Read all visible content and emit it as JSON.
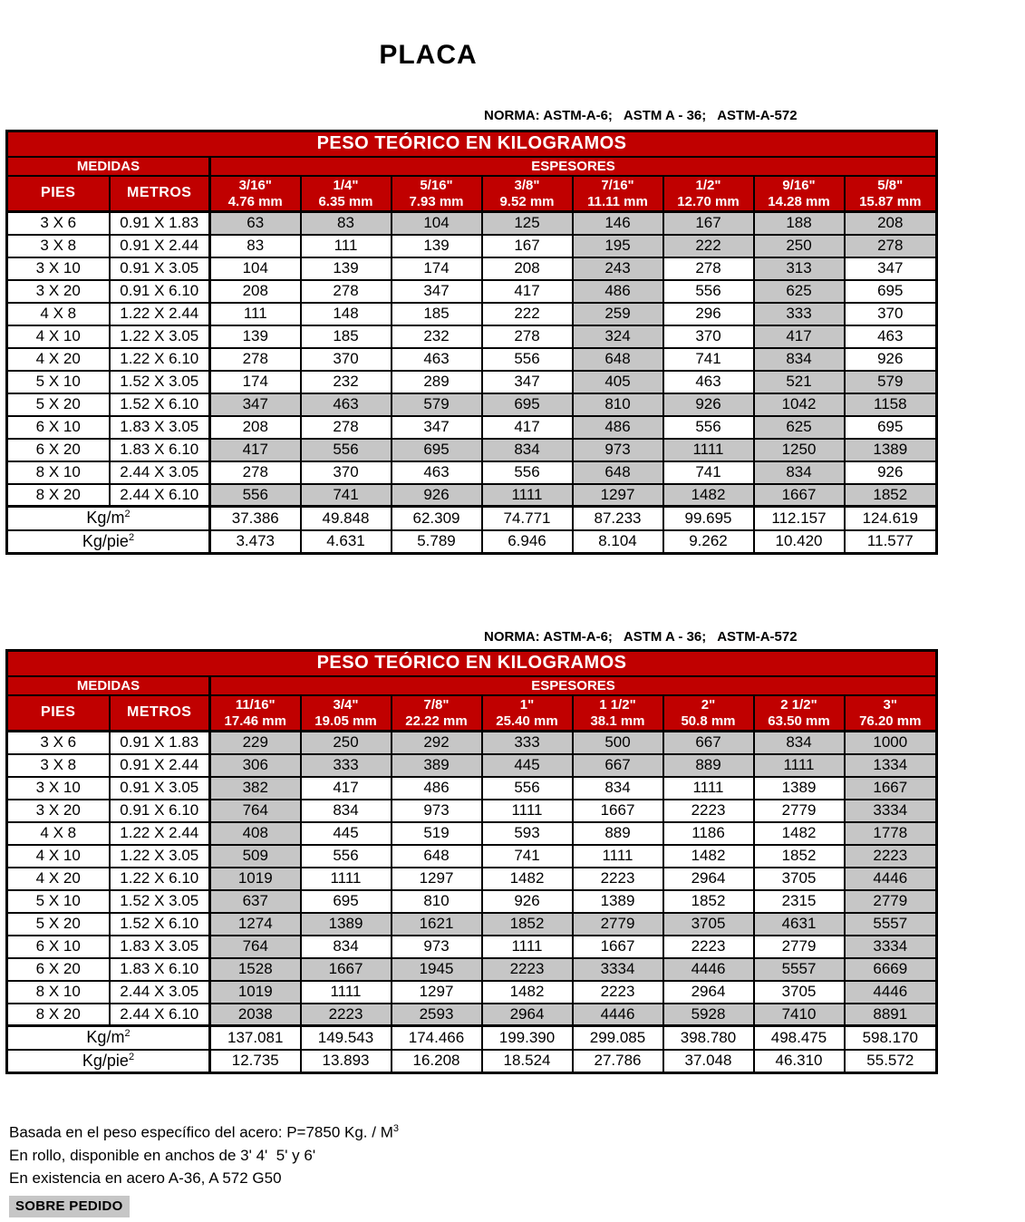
{
  "page": {
    "title": "PLACA",
    "norma": "NORMA: ASTM-A-6;   ASTM A - 36;   ASTM-A-572"
  },
  "colors": {
    "header_red": "#C00000",
    "shaded_gray": "#C6C6C6",
    "border_black": "#000000"
  },
  "table1": {
    "title": "PESO TEÓRICO EN KILOGRAMOS",
    "medidas_label": "MEDIDAS",
    "espesores_label": "ESPESORES",
    "pies_label": "PIES",
    "metros_label": "METROS",
    "columns": [
      {
        "inch": "3/16\"",
        "mm": "4.76 mm"
      },
      {
        "inch": "1/4\"",
        "mm": "6.35 mm"
      },
      {
        "inch": "5/16\"",
        "mm": "7.93 mm"
      },
      {
        "inch": "3/8\"",
        "mm": "9.52 mm"
      },
      {
        "inch": "7/16\"",
        "mm": "11.11 mm"
      },
      {
        "inch": "1/2\"",
        "mm": "12.70 mm"
      },
      {
        "inch": "9/16\"",
        "mm": "14.28 mm"
      },
      {
        "inch": "5/8\"",
        "mm": "15.87 mm"
      }
    ],
    "rows": [
      {
        "pies": "3 X 6",
        "metros": "0.91 X 1.83",
        "values": [
          63,
          83,
          104,
          125,
          146,
          167,
          188,
          208
        ],
        "gray": [
          1,
          1,
          1,
          1,
          1,
          1,
          1,
          1
        ],
        "group_start": true
      },
      {
        "pies": "3 X 8",
        "metros": "0.91 X 2.44",
        "values": [
          83,
          111,
          139,
          167,
          195,
          222,
          250,
          278
        ],
        "gray": [
          0,
          0,
          0,
          0,
          1,
          1,
          1,
          1
        ],
        "group_start": false
      },
      {
        "pies": "3 X 10",
        "metros": "0.91 X 3.05",
        "values": [
          104,
          139,
          174,
          208,
          243,
          278,
          313,
          347
        ],
        "gray": [
          0,
          0,
          0,
          0,
          1,
          0,
          1,
          0
        ],
        "group_start": false
      },
      {
        "pies": "3 X 20",
        "metros": "0.91 X 6.10",
        "values": [
          208,
          278,
          347,
          417,
          486,
          556,
          625,
          695
        ],
        "gray": [
          0,
          0,
          0,
          0,
          1,
          0,
          1,
          0
        ],
        "group_start": false
      },
      {
        "pies": "4 X 8",
        "metros": "1.22 X 2.44",
        "values": [
          111,
          148,
          185,
          222,
          259,
          296,
          333,
          370
        ],
        "gray": [
          0,
          0,
          0,
          0,
          1,
          0,
          1,
          0
        ],
        "group_start": true
      },
      {
        "pies": "4 X 10",
        "metros": "1.22 X 3.05",
        "values": [
          139,
          185,
          232,
          278,
          324,
          370,
          417,
          463
        ],
        "gray": [
          0,
          0,
          0,
          0,
          1,
          0,
          1,
          0
        ],
        "group_start": false
      },
      {
        "pies": "4 X 20",
        "metros": "1.22 X 6.10",
        "values": [
          278,
          370,
          463,
          556,
          648,
          741,
          834,
          926
        ],
        "gray": [
          0,
          0,
          0,
          0,
          1,
          0,
          1,
          0
        ],
        "group_start": false
      },
      {
        "pies": "5 X 10",
        "metros": "1.52 X 3.05",
        "values": [
          174,
          232,
          289,
          347,
          405,
          463,
          521,
          579
        ],
        "gray": [
          0,
          0,
          0,
          0,
          1,
          0,
          1,
          1
        ],
        "group_start": true
      },
      {
        "pies": "5 X 20",
        "metros": "1.52 X 6.10",
        "values": [
          347,
          463,
          579,
          695,
          810,
          926,
          1042,
          1158
        ],
        "gray": [
          1,
          1,
          1,
          1,
          1,
          1,
          1,
          1
        ],
        "group_start": false
      },
      {
        "pies": "6 X 10",
        "metros": "1.83 X 3.05",
        "values": [
          208,
          278,
          347,
          417,
          486,
          556,
          625,
          695
        ],
        "gray": [
          0,
          0,
          0,
          0,
          1,
          0,
          1,
          0
        ],
        "group_start": true
      },
      {
        "pies": "6 X 20",
        "metros": "1.83 X 6.10",
        "values": [
          417,
          556,
          695,
          834,
          973,
          1111,
          1250,
          1389
        ],
        "gray": [
          1,
          1,
          1,
          1,
          1,
          1,
          1,
          1
        ],
        "group_start": false
      },
      {
        "pies": "8 X 10",
        "metros": "2.44 X 3.05",
        "values": [
          278,
          370,
          463,
          556,
          648,
          741,
          834,
          926
        ],
        "gray": [
          0,
          0,
          0,
          0,
          1,
          0,
          1,
          0
        ],
        "group_start": true
      },
      {
        "pies": "8 X 20",
        "metros": "2.44 X 6.10",
        "values": [
          556,
          741,
          926,
          1111,
          1297,
          1482,
          1667,
          1852
        ],
        "gray": [
          1,
          1,
          1,
          1,
          1,
          1,
          1,
          1
        ],
        "group_start": false
      }
    ],
    "kgm2_label": "Kg/m",
    "kgm2_sup": "2",
    "kgm2": [
      "37.386",
      "49.848",
      "62.309",
      "74.771",
      "87.233",
      "99.695",
      "112.157",
      "124.619"
    ],
    "kgpie2_label": "Kg/pie",
    "kgpie2_sup": "2",
    "kgpie2": [
      "3.473",
      "4.631",
      "5.789",
      "6.946",
      "8.104",
      "9.262",
      "10.420",
      "11.577"
    ]
  },
  "table2": {
    "title": "PESO TEÓRICO EN KILOGRAMOS",
    "medidas_label": "MEDIDAS",
    "espesores_label": "ESPESORES",
    "pies_label": "PIES",
    "metros_label": "METROS",
    "columns": [
      {
        "inch": "11/16\"",
        "mm": "17.46 mm"
      },
      {
        "inch": "3/4\"",
        "mm": "19.05 mm"
      },
      {
        "inch": "7/8\"",
        "mm": "22.22 mm"
      },
      {
        "inch": "1\"",
        "mm": "25.40 mm"
      },
      {
        "inch": "1 1/2\"",
        "mm": "38.1 mm"
      },
      {
        "inch": "2\"",
        "mm": "50.8 mm"
      },
      {
        "inch": "2 1/2\"",
        "mm": "63.50 mm"
      },
      {
        "inch": "3\"",
        "mm": "76.20 mm"
      }
    ],
    "rows": [
      {
        "pies": "3 X 6",
        "metros": "0.91 X 1.83",
        "values": [
          229,
          250,
          292,
          333,
          500,
          667,
          834,
          1000
        ],
        "gray": [
          1,
          1,
          1,
          1,
          1,
          1,
          1,
          1
        ],
        "group_start": true
      },
      {
        "pies": "3 X 8",
        "metros": "0.91 X 2.44",
        "values": [
          306,
          333,
          389,
          445,
          667,
          889,
          1111,
          1334
        ],
        "gray": [
          1,
          1,
          1,
          1,
          1,
          1,
          1,
          1
        ],
        "group_start": false
      },
      {
        "pies": "3 X 10",
        "metros": "0.91 X 3.05",
        "values": [
          382,
          417,
          486,
          556,
          834,
          1111,
          1389,
          1667
        ],
        "gray": [
          1,
          0,
          0,
          0,
          0,
          0,
          0,
          1
        ],
        "group_start": false
      },
      {
        "pies": "3 X 20",
        "metros": "0.91 X 6.10",
        "values": [
          764,
          834,
          973,
          1111,
          1667,
          2223,
          2779,
          3334
        ],
        "gray": [
          1,
          0,
          0,
          0,
          0,
          0,
          0,
          1
        ],
        "group_start": false
      },
      {
        "pies": "4 X 8",
        "metros": "1.22 X 2.44",
        "values": [
          408,
          445,
          519,
          593,
          889,
          1186,
          1482,
          1778
        ],
        "gray": [
          1,
          0,
          0,
          0,
          0,
          0,
          0,
          1
        ],
        "group_start": true
      },
      {
        "pies": "4 X 10",
        "metros": "1.22 X 3.05",
        "values": [
          509,
          556,
          648,
          741,
          1111,
          1482,
          1852,
          2223
        ],
        "gray": [
          1,
          0,
          0,
          0,
          0,
          0,
          0,
          1
        ],
        "group_start": false
      },
      {
        "pies": "4 X 20",
        "metros": "1.22 X 6.10",
        "values": [
          1019,
          1111,
          1297,
          1482,
          2223,
          2964,
          3705,
          4446
        ],
        "gray": [
          1,
          0,
          0,
          0,
          0,
          0,
          0,
          1
        ],
        "group_start": false
      },
      {
        "pies": "5 X 10",
        "metros": "1.52 X 3.05",
        "values": [
          637,
          695,
          810,
          926,
          1389,
          1852,
          2315,
          2779
        ],
        "gray": [
          1,
          0,
          0,
          0,
          0,
          0,
          0,
          1
        ],
        "group_start": true
      },
      {
        "pies": "5 X 20",
        "metros": "1.52 X 6.10",
        "values": [
          1274,
          1389,
          1621,
          1852,
          2779,
          3705,
          4631,
          5557
        ],
        "gray": [
          1,
          1,
          1,
          1,
          1,
          1,
          1,
          1
        ],
        "group_start": false
      },
      {
        "pies": "6 X 10",
        "metros": "1.83 X 3.05",
        "values": [
          764,
          834,
          973,
          1111,
          1667,
          2223,
          2779,
          3334
        ],
        "gray": [
          1,
          0,
          0,
          0,
          0,
          0,
          0,
          1
        ],
        "group_start": true
      },
      {
        "pies": "6 X 20",
        "metros": "1.83 X 6.10",
        "values": [
          1528,
          1667,
          1945,
          2223,
          3334,
          4446,
          5557,
          6669
        ],
        "gray": [
          1,
          1,
          1,
          1,
          1,
          1,
          1,
          1
        ],
        "group_start": false
      },
      {
        "pies": "8 X 10",
        "metros": "2.44 X 3.05",
        "values": [
          1019,
          1111,
          1297,
          1482,
          2223,
          2964,
          3705,
          4446
        ],
        "gray": [
          1,
          0,
          0,
          0,
          0,
          0,
          0,
          1
        ],
        "group_start": true
      },
      {
        "pies": "8 X 20",
        "metros": "2.44 X 6.10",
        "values": [
          2038,
          2223,
          2593,
          2964,
          4446,
          5928,
          7410,
          8891
        ],
        "gray": [
          1,
          1,
          1,
          1,
          1,
          1,
          1,
          1
        ],
        "group_start": false
      }
    ],
    "kgm2_label": "Kg/m",
    "kgm2_sup": "2",
    "kgm2": [
      "137.081",
      "149.543",
      "174.466",
      "199.390",
      "299.085",
      "398.780",
      "498.475",
      "598.170"
    ],
    "kgpie2_label": "Kg/pie",
    "kgpie2_sup": "2",
    "kgpie2": [
      "12.735",
      "13.893",
      "16.208",
      "18.524",
      "27.786",
      "37.048",
      "46.310",
      "55.572"
    ]
  },
  "footer": {
    "line1": "Basada en el peso específico del acero: P=7850 Kg. / M",
    "line1_sup": "3",
    "line2": "En rollo, disponible en anchos de 3' 4'  5' y 6'",
    "line3": "En existencia en acero A-36, A 572 G50",
    "badge": "SOBRE PEDIDO"
  }
}
